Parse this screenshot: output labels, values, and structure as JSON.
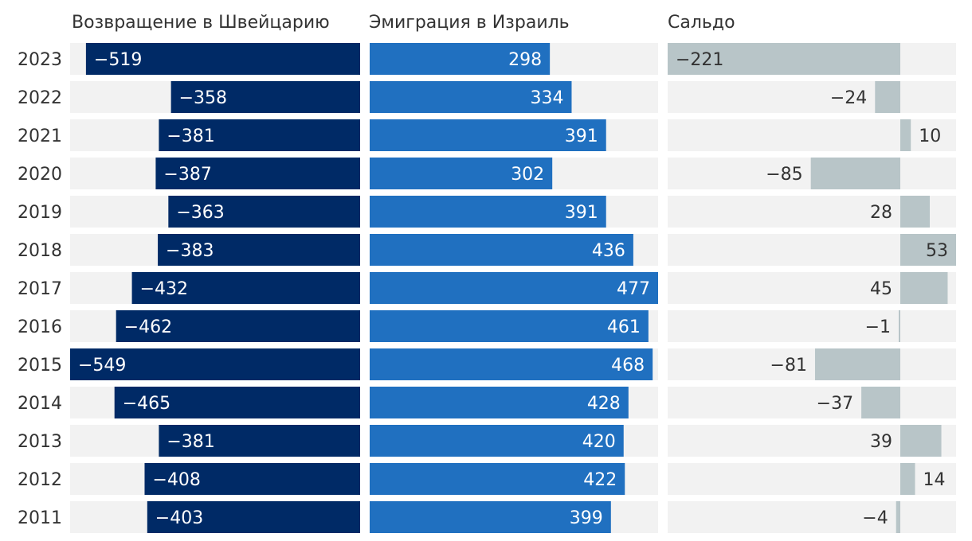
{
  "chart_data": {
    "type": "bar",
    "layout": "three panels of horizontal bars sharing one year axis",
    "years": [
      "2023",
      "2022",
      "2021",
      "2020",
      "2019",
      "2018",
      "2017",
      "2016",
      "2015",
      "2014",
      "2013",
      "2012",
      "2011"
    ],
    "series": [
      {
        "name": "Возвращение в Швейцарию",
        "values": [
          -519,
          -358,
          -381,
          -387,
          -363,
          -383,
          -432,
          -462,
          -549,
          -465,
          -381,
          -408,
          -403
        ],
        "color": "#002a66"
      },
      {
        "name": "Эмиграция в Израиль",
        "values": [
          298,
          334,
          391,
          302,
          391,
          436,
          477,
          461,
          468,
          428,
          420,
          422,
          399
        ],
        "color": "#2070c0"
      },
      {
        "name": "Сальдо",
        "values": [
          -221,
          -24,
          10,
          -85,
          28,
          53,
          45,
          -1,
          -81,
          -37,
          39,
          14,
          -4
        ],
        "color": "#b8c5c8"
      }
    ],
    "track_color": "#f2f2f2",
    "label_color_dark": "#ffffff",
    "label_color_light": "#333333"
  }
}
